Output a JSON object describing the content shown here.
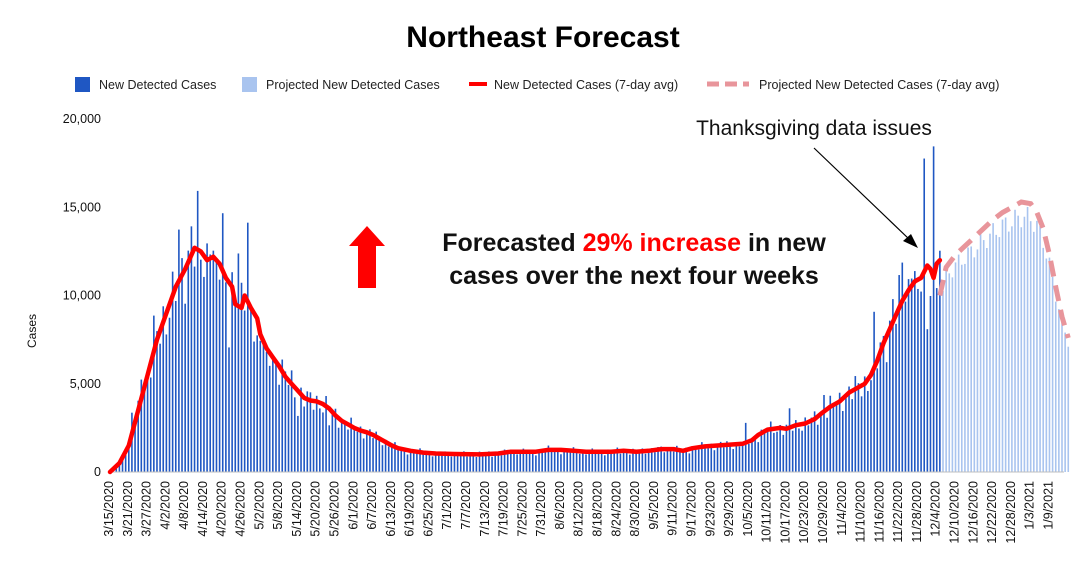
{
  "chart_data": {
    "type": "bar",
    "title": "Northeast Forecast",
    "ylabel": "Cases",
    "xlabel": "",
    "ylim": [
      0,
      20000
    ],
    "yticks": [
      "0",
      "5,000",
      "10,000",
      "15,000",
      "20,000"
    ],
    "ytick_values": [
      0,
      5000,
      10000,
      15000,
      20000
    ],
    "x_start_date": "2020-03-15",
    "x_days_total": 304,
    "x_ticks": [
      "3/15/2020",
      "3/21/2020",
      "3/27/2020",
      "4/2/2020",
      "4/8/2020",
      "4/14/2020",
      "4/20/2020",
      "4/26/2020",
      "5/2/2020",
      "5/8/2020",
      "5/14/2020",
      "5/20/2020",
      "5/26/2020",
      "6/1/2020",
      "6/7/2020",
      "6/13/2020",
      "6/19/2020",
      "6/25/2020",
      "7/1/2020",
      "7/7/2020",
      "7/13/2020",
      "7/19/2020",
      "7/25/2020",
      "7/31/2020",
      "8/6/2020",
      "8/12/2020",
      "8/18/2020",
      "8/24/2020",
      "8/30/2020",
      "9/5/2020",
      "9/11/2020",
      "9/17/2020",
      "9/23/2020",
      "9/29/2020",
      "10/5/2020",
      "10/11/2020",
      "10/17/2020",
      "10/23/2020",
      "10/29/2020",
      "11/4/2020",
      "11/10/2020",
      "11/16/2020",
      "11/22/2020",
      "11/28/2020",
      "12/4/2020",
      "12/10/2020",
      "12/16/2020",
      "12/22/2020",
      "12/28/2020",
      "1/3/2021",
      "1/9/2021"
    ],
    "legend": [
      {
        "label": "New Detected Cases",
        "kind": "bar",
        "color": "#1f57c3"
      },
      {
        "label": "Projected New Detected Cases",
        "kind": "bar",
        "color": "#a9c4ef"
      },
      {
        "label": "New Detected Cases (7-day avg)",
        "kind": "line",
        "color": "#ff0000"
      },
      {
        "label": "Projected New Detected Cases (7-day avg)",
        "kind": "dashed",
        "color": "#e8959b"
      }
    ],
    "legend_position": "top",
    "actual_avg_anchors": [
      [
        0,
        0
      ],
      [
        3,
        500
      ],
      [
        6,
        1500
      ],
      [
        9,
        3500
      ],
      [
        12,
        5500
      ],
      [
        15,
        7500
      ],
      [
        18,
        9000
      ],
      [
        21,
        10500
      ],
      [
        24,
        11500
      ],
      [
        27,
        12700
      ],
      [
        29,
        12500
      ],
      [
        31,
        12000
      ],
      [
        33,
        12200
      ],
      [
        35,
        11800
      ],
      [
        37,
        11000
      ],
      [
        39,
        10500
      ],
      [
        40,
        9500
      ],
      [
        42,
        9300
      ],
      [
        43,
        10000
      ],
      [
        45,
        9300
      ],
      [
        47,
        8700
      ],
      [
        48,
        7800
      ],
      [
        50,
        7000
      ],
      [
        52,
        6500
      ],
      [
        54,
        6000
      ],
      [
        56,
        5400
      ],
      [
        58,
        5000
      ],
      [
        60,
        4600
      ],
      [
        62,
        4200
      ],
      [
        64,
        4050
      ],
      [
        66,
        4000
      ],
      [
        68,
        3850
      ],
      [
        70,
        3600
      ],
      [
        72,
        3200
      ],
      [
        74,
        2900
      ],
      [
        76,
        2700
      ],
      [
        78,
        2500
      ],
      [
        80,
        2350
      ],
      [
        82,
        2250
      ],
      [
        84,
        2100
      ],
      [
        86,
        1900
      ],
      [
        88,
        1700
      ],
      [
        90,
        1500
      ],
      [
        92,
        1350
      ],
      [
        96,
        1200
      ],
      [
        100,
        1100
      ],
      [
        104,
        1050
      ],
      [
        110,
        1020
      ],
      [
        118,
        1000
      ],
      [
        124,
        1050
      ],
      [
        128,
        1150
      ],
      [
        132,
        1150
      ],
      [
        136,
        1150
      ],
      [
        140,
        1250
      ],
      [
        144,
        1250
      ],
      [
        148,
        1200
      ],
      [
        152,
        1150
      ],
      [
        156,
        1150
      ],
      [
        160,
        1150
      ],
      [
        164,
        1200
      ],
      [
        168,
        1150
      ],
      [
        172,
        1200
      ],
      [
        176,
        1300
      ],
      [
        180,
        1300
      ],
      [
        183,
        1200
      ],
      [
        186,
        1350
      ],
      [
        190,
        1450
      ],
      [
        194,
        1500
      ],
      [
        198,
        1550
      ],
      [
        202,
        1600
      ],
      [
        205,
        1800
      ],
      [
        207,
        2100
      ],
      [
        210,
        2400
      ],
      [
        214,
        2500
      ],
      [
        216,
        2450
      ],
      [
        219,
        2650
      ],
      [
        222,
        2750
      ],
      [
        225,
        3000
      ],
      [
        227,
        3300
      ],
      [
        230,
        3700
      ],
      [
        233,
        4000
      ],
      [
        236,
        4500
      ],
      [
        239,
        4800
      ],
      [
        241,
        5000
      ],
      [
        243,
        5500
      ],
      [
        245,
        6300
      ],
      [
        247,
        7300
      ],
      [
        249,
        8100
      ],
      [
        251,
        8900
      ],
      [
        253,
        9700
      ],
      [
        255,
        10300
      ],
      [
        257,
        10800
      ],
      [
        259,
        11000
      ],
      [
        261,
        11700
      ],
      [
        262,
        11500
      ],
      [
        263,
        11000
      ],
      [
        264,
        11800
      ],
      [
        265,
        12000
      ]
    ],
    "projected_avg_anchors": [
      [
        265,
        10000
      ],
      [
        267,
        11600
      ],
      [
        270,
        12300
      ],
      [
        273,
        12800
      ],
      [
        276,
        13300
      ],
      [
        279,
        13800
      ],
      [
        282,
        14300
      ],
      [
        285,
        14700
      ],
      [
        288,
        15000
      ],
      [
        291,
        15300
      ],
      [
        294,
        15200
      ],
      [
        296,
        14700
      ],
      [
        298,
        13800
      ],
      [
        300,
        12300
      ],
      [
        302,
        10500
      ],
      [
        304,
        8800
      ],
      [
        306,
        7600
      ]
    ],
    "spikes": [
      [
        7,
        1200
      ],
      [
        10,
        1700
      ],
      [
        14,
        1000
      ],
      [
        22,
        1800
      ],
      [
        26,
        2300
      ],
      [
        28,
        900
      ],
      [
        30,
        -1200
      ],
      [
        32,
        2600
      ],
      [
        34,
        -800
      ],
      [
        36,
        1200
      ],
      [
        38,
        -2500
      ],
      [
        40,
        1500
      ],
      [
        41,
        2800
      ],
      [
        44,
        3500
      ],
      [
        47,
        -1800
      ],
      [
        50,
        -1500
      ],
      [
        60,
        -1000
      ],
      [
        70,
        -800
      ],
      [
        203,
        800
      ],
      [
        217,
        800
      ],
      [
        228,
        1000
      ],
      [
        244,
        2200
      ],
      [
        250,
        1500
      ],
      [
        253,
        2700
      ],
      [
        256,
        2400
      ],
      [
        258,
        -1500
      ],
      [
        260,
        4600
      ],
      [
        261,
        -3000
      ],
      [
        263,
        6500
      ]
    ],
    "actual_last_day": 265,
    "projected_first_day": 266,
    "projected_last_day": 306
  },
  "annotations": {
    "thanksgiving": "Thanksgiving data issues",
    "callout_part1": "Forecasted ",
    "callout_highlight": "29% increase",
    "callout_part2": " in new",
    "callout_line2": "cases over the next four weeks"
  },
  "colors": {
    "actual_bar": "#1f57c3",
    "projected_bar": "#a9c4ef",
    "avg_line": "#ff0000",
    "projected_line": "#e8959b",
    "arrow": "#ff0000"
  }
}
